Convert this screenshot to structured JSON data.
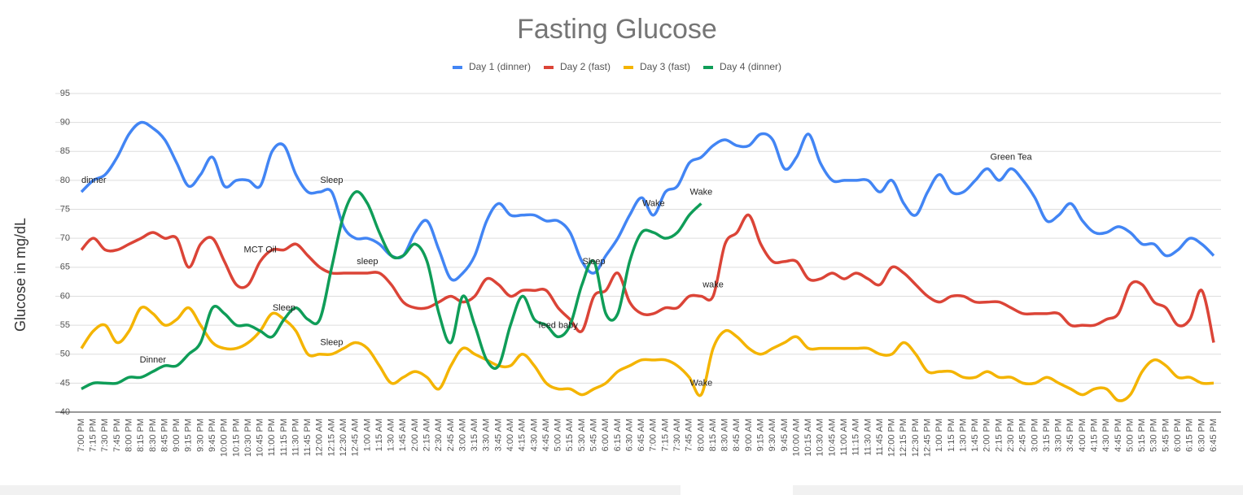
{
  "chart_data": {
    "type": "line",
    "title": "Fasting Glucose",
    "y_label": "Glucose in mg/dL",
    "categories": [
      "7:00 PM",
      "7:15 PM",
      "7:30 PM",
      "7:45 PM",
      "8:00 PM",
      "8:15 PM",
      "8:30 PM",
      "8:45 PM",
      "9:00 PM",
      "9:15 PM",
      "9:30 PM",
      "9:45 PM",
      "10:00 PM",
      "10:15 PM",
      "10:30 PM",
      "10:45 PM",
      "11:00 PM",
      "11:15 PM",
      "11:30 PM",
      "11:45 PM",
      "12:00 AM",
      "12:15 AM",
      "12:30 AM",
      "12:45 AM",
      "1:00 AM",
      "1:15 AM",
      "1:30 AM",
      "1:45 AM",
      "2:00 AM",
      "2:15 AM",
      "2:30 AM",
      "2:45 AM",
      "3:00 AM",
      "3:15 AM",
      "3:30 AM",
      "3:45 AM",
      "4:00 AM",
      "4:15 AM",
      "4:30 AM",
      "4:45 AM",
      "5:00 AM",
      "5:15 AM",
      "5:30 AM",
      "5:45 AM",
      "6:00 AM",
      "6:15 AM",
      "6:30 AM",
      "6:45 AM",
      "7:00 AM",
      "7:15 AM",
      "7:30 AM",
      "7:45 AM",
      "8:00 AM",
      "8:15 AM",
      "8:30 AM",
      "8:45 AM",
      "9:00 AM",
      "9:15 AM",
      "9:30 AM",
      "9:45 AM",
      "10:00 AM",
      "10:15 AM",
      "10:30 AM",
      "10:45 AM",
      "11:00 AM",
      "11:15 AM",
      "11:30 AM",
      "11:45 AM",
      "12:00 PM",
      "12:15 PM",
      "12:30 PM",
      "12:45 PM",
      "1:00 PM",
      "1:15 PM",
      "1:30 PM",
      "1:45 PM",
      "2:00 PM",
      "2:15 PM",
      "2:30 PM",
      "2:45 PM",
      "3:00 PM",
      "3:15 PM",
      "3:30 PM",
      "3:45 PM",
      "4:00 PM",
      "4:15 PM",
      "4:30 PM",
      "4:45 PM",
      "5:00 PM",
      "5:15 PM",
      "5:30 PM",
      "5:45 PM",
      "6:00 PM",
      "6:15 PM",
      "6:30 PM",
      "6:45 PM"
    ],
    "series": [
      {
        "name": "Day 1 (dinner)",
        "color": "#4285f4",
        "values": [
          78,
          80,
          81,
          84,
          88,
          90,
          89,
          87,
          83,
          79,
          81,
          84,
          79,
          80,
          80,
          79,
          85,
          86,
          81,
          78,
          78,
          78,
          72,
          70,
          70,
          69,
          67,
          67,
          71,
          73,
          68,
          63,
          64,
          67,
          73,
          76,
          74,
          74,
          74,
          73,
          73,
          71,
          66,
          64,
          67,
          70,
          74,
          77,
          74,
          78,
          79,
          83,
          84,
          86,
          87,
          86,
          86,
          88,
          87,
          82,
          84,
          88,
          83,
          80,
          80,
          80,
          80,
          78,
          80,
          76,
          74,
          78,
          81,
          78,
          78,
          80,
          82,
          80,
          82,
          80,
          77,
          73,
          74,
          76,
          73,
          71,
          71,
          72,
          71,
          69,
          69,
          67,
          68,
          70,
          69,
          67
        ]
      },
      {
        "name": "Day 2 (fast)",
        "color": "#db4437",
        "values": [
          68,
          70,
          68,
          68,
          69,
          70,
          71,
          70,
          70,
          65,
          69,
          70,
          66,
          62,
          62,
          66,
          68,
          68,
          69,
          67,
          65,
          64,
          64,
          64,
          64,
          64,
          62,
          59,
          58,
          58,
          59,
          60,
          59,
          60,
          63,
          62,
          60,
          61,
          61,
          61,
          58,
          56,
          54,
          60,
          61,
          64,
          59,
          57,
          57,
          58,
          58,
          60,
          60,
          60,
          69,
          71,
          74,
          69,
          66,
          66,
          66,
          63,
          63,
          64,
          63,
          64,
          63,
          62,
          65,
          64,
          62,
          60,
          59,
          60,
          60,
          59,
          59,
          59,
          58,
          57,
          57,
          57,
          57,
          55,
          55,
          55,
          56,
          57,
          62,
          62,
          59,
          58,
          55,
          56,
          61,
          52
        ]
      },
      {
        "name": "Day 3 (fast)",
        "color": "#f4b400",
        "values": [
          51,
          54,
          55,
          52,
          54,
          58,
          57,
          55,
          56,
          58,
          55,
          52,
          51,
          51,
          52,
          54,
          57,
          56,
          54,
          50,
          50,
          50,
          51,
          52,
          51,
          48,
          45,
          46,
          47,
          46,
          44,
          48,
          51,
          50,
          49,
          48,
          48,
          50,
          48,
          45,
          44,
          44,
          43,
          44,
          45,
          47,
          48,
          49,
          49,
          49,
          48,
          46,
          43,
          51,
          54,
          53,
          51,
          50,
          51,
          52,
          53,
          51,
          51,
          51,
          51,
          51,
          51,
          50,
          50,
          52,
          50,
          47,
          47,
          47,
          46,
          46,
          47,
          46,
          46,
          45,
          45,
          46,
          45,
          44,
          43,
          44,
          44,
          42,
          43,
          47,
          49,
          48,
          46,
          46,
          45,
          45
        ]
      },
      {
        "name": "Day 4 (dinner)",
        "color": "#0f9d58",
        "values": [
          44,
          45,
          45,
          45,
          46,
          46,
          47,
          48,
          48,
          50,
          52,
          58,
          57,
          55,
          55,
          54,
          53,
          56,
          58,
          56,
          56,
          65,
          74,
          78,
          76,
          71,
          67,
          67,
          69,
          66,
          57,
          52,
          60,
          55,
          49,
          48,
          55,
          60,
          56,
          55,
          53,
          55,
          62,
          66,
          57,
          57,
          66,
          71,
          71,
          70,
          71,
          74,
          76,
          null,
          null,
          null,
          null,
          null,
          null,
          null,
          null,
          null,
          null,
          null,
          null,
          null,
          null,
          null,
          null,
          null,
          null,
          null,
          null,
          null,
          null,
          null,
          null,
          null,
          null,
          null,
          null,
          null,
          null,
          null,
          null,
          null,
          null,
          null,
          null,
          null,
          null,
          null,
          null,
          null,
          null,
          null
        ]
      }
    ],
    "ylim": [
      40,
      95
    ],
    "yticks": [
      40,
      45,
      50,
      55,
      60,
      65,
      70,
      75,
      80,
      85,
      90,
      95
    ],
    "grid": true,
    "legend": "top",
    "annotations": [
      {
        "text": "dinner",
        "series": "Day 1 (dinner)",
        "x": "7:00 PM"
      },
      {
        "text": "Sleep",
        "series": "Day 1 (dinner)",
        "x": "12:15 AM"
      },
      {
        "text": "MCT Oil",
        "series": "Day 2 (fast)",
        "x": "10:45 PM"
      },
      {
        "text": "sleep",
        "series": "Day 2 (fast)",
        "x": "1:00 AM"
      },
      {
        "text": "Sleep",
        "series": "Day 4 (dinner)",
        "x": "11:15 PM"
      },
      {
        "text": "Sleep",
        "series": "Day 3 (fast)",
        "x": "12:15 AM"
      },
      {
        "text": "Dinner",
        "series": "Day 4 (dinner)",
        "x": "8:30 PM"
      },
      {
        "text": "feed baby",
        "series": "Day 4 (dinner)",
        "x": "5:00 AM"
      },
      {
        "text": "Sleep",
        "series": "Day 1 (dinner)",
        "x": "5:45 AM"
      },
      {
        "text": "Wake",
        "series": "Day 1 (dinner)",
        "x": "7:00 AM"
      },
      {
        "text": "Wake",
        "series": "Day 4 (dinner)",
        "x": "8:00 AM"
      },
      {
        "text": "wake",
        "series": "Day 2 (fast)",
        "x": "8:15 AM"
      },
      {
        "text": "Wake",
        "series": "Day 3 (fast)",
        "x": "8:00 AM"
      },
      {
        "text": "Green Tea",
        "series": "Day 1 (dinner)",
        "x": "2:30 PM"
      }
    ]
  }
}
